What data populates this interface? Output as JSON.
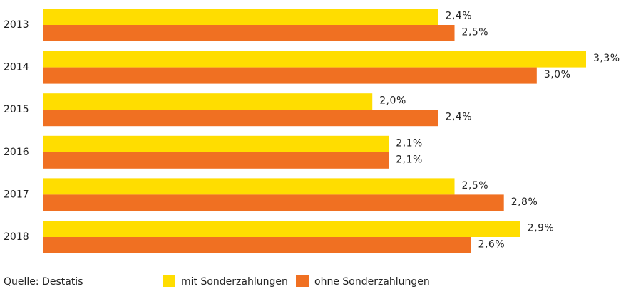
{
  "chart_data": {
    "type": "bar",
    "orientation": "horizontal",
    "categories": [
      "2013",
      "2014",
      "2015",
      "2016",
      "2017",
      "2018"
    ],
    "series": [
      {
        "name": "mit Sonderzahlungen",
        "color": "#ffdd00",
        "values": [
          2.4,
          3.3,
          2.0,
          2.1,
          2.5,
          2.9
        ],
        "value_labels": [
          "2,4%",
          "3,3%",
          "2,0%",
          "2,1%",
          "2,5%",
          "2,9%"
        ]
      },
      {
        "name": "ohne Sonderzahlungen",
        "color": "#f07022",
        "values": [
          2.5,
          3.0,
          2.4,
          2.1,
          2.8,
          2.6
        ],
        "value_labels": [
          "2,5%",
          "3,0%",
          "2,4%",
          "2,1%",
          "2,8%",
          "2,6%"
        ]
      }
    ],
    "source": "Quelle: Destatis"
  }
}
